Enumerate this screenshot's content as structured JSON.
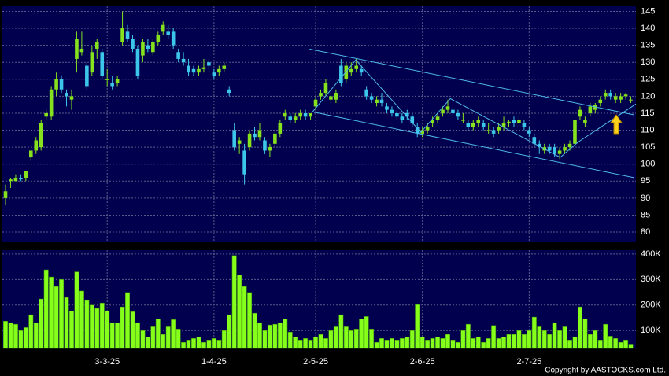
{
  "chart_data": {
    "type": "candlestick",
    "xlim": [
      -0.62,
      124
    ],
    "xticks": [
      {
        "value": 20,
        "label": "3-3-25"
      },
      {
        "value": 41,
        "label": "1-4-25"
      },
      {
        "value": 61,
        "label": "2-5-25"
      },
      {
        "value": 82,
        "label": "2-6-25"
      },
      {
        "value": 103,
        "label": "2-7-25"
      }
    ],
    "ylim": [
      77,
      146.5
    ],
    "yticks": [
      80,
      85,
      90,
      95,
      100,
      105,
      110,
      115,
      120,
      125,
      130,
      135,
      140,
      145
    ],
    "up_color": "#86e21c",
    "down_color": "#3cc6ea",
    "ohlc": [
      [
        90,
        94,
        88,
        92
      ],
      [
        95,
        96,
        93,
        95.5
      ],
      [
        95,
        97,
        95,
        96
      ],
      [
        96,
        97,
        95,
        95.5
      ],
      [
        96,
        98,
        95,
        98
      ],
      [
        102,
        104,
        101,
        104
      ],
      [
        104,
        108,
        103,
        107
      ],
      [
        105,
        113,
        104,
        112
      ],
      [
        114,
        116,
        113,
        115
      ],
      [
        114,
        123,
        113,
        122
      ],
      [
        122,
        127,
        120,
        125
      ],
      [
        125,
        126,
        121,
        122
      ],
      [
        121,
        122,
        117,
        120
      ],
      [
        119,
        122,
        116,
        120
      ],
      [
        131,
        139,
        127,
        137
      ],
      [
        133,
        139,
        132,
        134
      ],
      [
        129,
        130,
        122,
        123
      ],
      [
        127,
        135,
        126,
        133
      ],
      [
        134,
        137,
        131,
        136
      ],
      [
        133,
        134,
        125,
        126
      ],
      [
        125,
        128,
        123,
        125
      ],
      [
        124,
        126,
        122,
        123
      ],
      [
        124,
        126,
        123,
        125
      ],
      [
        136,
        145,
        135,
        140
      ],
      [
        139,
        141,
        136,
        137
      ],
      [
        137,
        138,
        133,
        134
      ],
      [
        134,
        135,
        125,
        126
      ],
      [
        132,
        137,
        130,
        136
      ],
      [
        135,
        137,
        133,
        134
      ],
      [
        133,
        137,
        132,
        136
      ],
      [
        136,
        139,
        135,
        138
      ],
      [
        139,
        142,
        138,
        141
      ],
      [
        139,
        141,
        137,
        138
      ],
      [
        139,
        140,
        134,
        135
      ],
      [
        133,
        134,
        130,
        131
      ],
      [
        131,
        133,
        129,
        130
      ],
      [
        129,
        131,
        126,
        127
      ],
      [
        128,
        129,
        126,
        127
      ],
      [
        127,
        129,
        126,
        128
      ],
      [
        128,
        131,
        127,
        128.5
      ],
      [
        130,
        131,
        128,
        129
      ],
      [
        127,
        128,
        125,
        126
      ],
      [
        127,
        129,
        126,
        128
      ],
      [
        128,
        130,
        127,
        129
      ],
      [
        122,
        123,
        120,
        121
      ],
      [
        110,
        112,
        104,
        105
      ],
      [
        106,
        108,
        103,
        107
      ],
      [
        104,
        106,
        94,
        97
      ],
      [
        105,
        110,
        104,
        109
      ],
      [
        109,
        111,
        107,
        108
      ],
      [
        108,
        112,
        107,
        110
      ],
      [
        107,
        108,
        103,
        104
      ],
      [
        104,
        106,
        102,
        105
      ],
      [
        106,
        110,
        105,
        109
      ],
      [
        109,
        113,
        108,
        112
      ],
      [
        114,
        116,
        113,
        115
      ],
      [
        114,
        115,
        112,
        113
      ],
      [
        113,
        115,
        112,
        114
      ],
      [
        114,
        116,
        113,
        115
      ],
      [
        115,
        116,
        113,
        114
      ],
      [
        114,
        115,
        113,
        115
      ],
      [
        117,
        120,
        116,
        119
      ],
      [
        120,
        122,
        119,
        121
      ],
      [
        121,
        125,
        120,
        124
      ],
      [
        119,
        121,
        118,
        120
      ],
      [
        119,
        122,
        118,
        121
      ],
      [
        129,
        131,
        123,
        124
      ],
      [
        125,
        130,
        124,
        129
      ],
      [
        127,
        130,
        126,
        128
      ],
      [
        128,
        131,
        127,
        129
      ],
      [
        128,
        129,
        126,
        127
      ],
      [
        122,
        123,
        119,
        120
      ],
      [
        120,
        121,
        118,
        119
      ],
      [
        118,
        120,
        117,
        119
      ],
      [
        119,
        121,
        117,
        118
      ],
      [
        117,
        118,
        115,
        116
      ],
      [
        116,
        117,
        114,
        115
      ],
      [
        115,
        116,
        113,
        114
      ],
      [
        114,
        115,
        112,
        113
      ],
      [
        115,
        116,
        113,
        114
      ],
      [
        114,
        115,
        111,
        112
      ],
      [
        111,
        112,
        108,
        109
      ],
      [
        109,
        111,
        108,
        110
      ],
      [
        110,
        112,
        109,
        111
      ],
      [
        112,
        114,
        111,
        113
      ],
      [
        113,
        115,
        112,
        114
      ],
      [
        115,
        117,
        114,
        116
      ],
      [
        116,
        119,
        115,
        117
      ],
      [
        116,
        117,
        114,
        115
      ],
      [
        115,
        116,
        113,
        114
      ],
      [
        113,
        115,
        112,
        113
      ],
      [
        112,
        113,
        110,
        111
      ],
      [
        111,
        113,
        110,
        112
      ],
      [
        112,
        114,
        111,
        113
      ],
      [
        112,
        113,
        110,
        111
      ],
      [
        110,
        112,
        109,
        110
      ],
      [
        110,
        111,
        108,
        109
      ],
      [
        110,
        112,
        109,
        111
      ],
      [
        111,
        114,
        110,
        112
      ],
      [
        112,
        113,
        111,
        112.5
      ],
      [
        113,
        114,
        111,
        112
      ],
      [
        112,
        114,
        111,
        113
      ],
      [
        112,
        113,
        110,
        111
      ],
      [
        110,
        111,
        108,
        109
      ],
      [
        108,
        109,
        105,
        106
      ],
      [
        106,
        107,
        103,
        105
      ],
      [
        104,
        106,
        103,
        105
      ],
      [
        105,
        106,
        103,
        104
      ],
      [
        105,
        106,
        102,
        103
      ],
      [
        103,
        105,
        101.5,
        104
      ],
      [
        104,
        106,
        103,
        105
      ],
      [
        105,
        107,
        104,
        106
      ],
      [
        106,
        114,
        105,
        113
      ],
      [
        114,
        117,
        113,
        116
      ],
      [
        112,
        114,
        111,
        113
      ],
      [
        115,
        118,
        114,
        117
      ],
      [
        116,
        118,
        115,
        117.5
      ],
      [
        118,
        120,
        117,
        119
      ],
      [
        120,
        122,
        119,
        121
      ],
      [
        121,
        122,
        119,
        120
      ],
      [
        119,
        121,
        118,
        120
      ],
      [
        119,
        121,
        118,
        120
      ],
      [
        120,
        121,
        119,
        120.5
      ],
      [
        119,
        120,
        118,
        119
      ]
    ],
    "trendlines": [
      [
        [
          59.8,
          133.9
        ],
        [
          123.7,
          114.5
        ]
      ],
      [
        [
          60.4,
          115.4
        ],
        [
          123.7,
          96
        ]
      ],
      [
        [
          60.4,
          115.4
        ],
        [
          68.9,
          130.7
        ],
        [
          81.7,
          109.4
        ],
        [
          87.5,
          119.3
        ],
        [
          109.1,
          102
        ],
        [
          112.7,
          106.6
        ],
        [
          124,
          117.7
        ]
      ]
    ],
    "trendline_color": "#4fb8e8",
    "volume": {
      "color": "#86ff1a",
      "ylim": [
        30000,
        415000
      ],
      "yticks": [
        {
          "value": 100000,
          "label": "100K"
        },
        {
          "value": 200000,
          "label": "200K"
        },
        {
          "value": 300000,
          "label": "300K"
        },
        {
          "value": 400000,
          "label": "400K"
        }
      ],
      "values": [
        137000,
        131000,
        125000,
        100000,
        112000,
        162000,
        131000,
        224000,
        338000,
        310000,
        273000,
        300000,
        230000,
        177000,
        330000,
        255000,
        218000,
        200000,
        187000,
        208000,
        177000,
        131000,
        131000,
        193000,
        249000,
        174000,
        131000,
        100000,
        75000,
        115000,
        146000,
        85000,
        115000,
        143000,
        106000,
        54000,
        63000,
        69000,
        75000,
        54000,
        63000,
        69000,
        63000,
        100000,
        162000,
        394000,
        317000,
        273000,
        249000,
        168000,
        131000,
        100000,
        122000,
        125000,
        131000,
        146000,
        94000,
        75000,
        63000,
        69000,
        63000,
        75000,
        85000,
        69000,
        100000,
        115000,
        162000,
        115000,
        100000,
        106000,
        146000,
        155000,
        106000,
        54000,
        69000,
        63000,
        69000,
        63000,
        69000,
        75000,
        100000,
        202000,
        75000,
        63000,
        69000,
        75000,
        69000,
        85000,
        63000,
        54000,
        100000,
        125000,
        69000,
        75000,
        54000,
        69000,
        120000,
        69000,
        75000,
        85000,
        85000,
        100000,
        85000,
        100000,
        153000,
        115000,
        100000,
        85000,
        131000,
        100000,
        115000,
        63000,
        75000,
        193000,
        146000,
        85000,
        100000,
        63000,
        125000,
        78000,
        69000,
        54000,
        63000,
        47000
      ]
    },
    "copyright": "Copyright by AASTOCKS.com Ltd."
  }
}
